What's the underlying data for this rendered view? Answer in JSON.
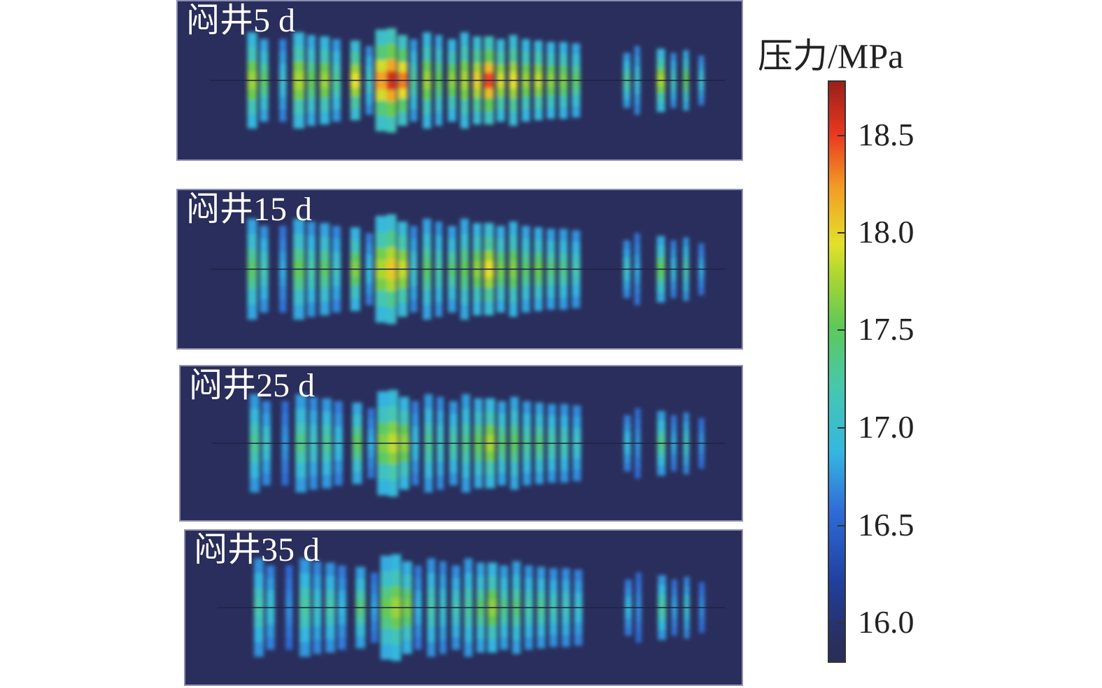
{
  "panels": [
    {
      "label": "闷井5 d"
    },
    {
      "label": "闷井15 d"
    },
    {
      "label": "闷井25 d"
    },
    {
      "label": "闷井35 d"
    }
  ],
  "legend": {
    "title": "压力/MPa",
    "ticks": [
      "18.5",
      "18.0",
      "17.5",
      "17.0",
      "16.5",
      "16.0"
    ]
  },
  "colors": {
    "background": "#2a2e5c",
    "low": "#2040a0",
    "mid": "#5fc957",
    "high": "#e8381f",
    "max": "#9b1f1a"
  }
}
